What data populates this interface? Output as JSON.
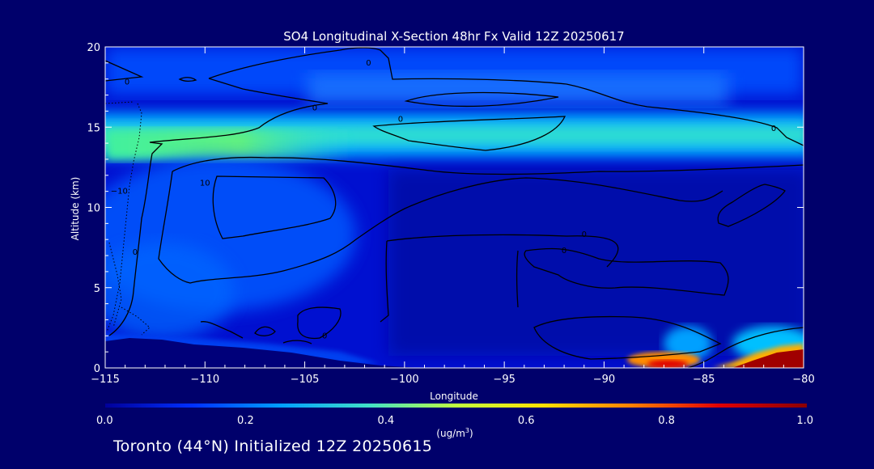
{
  "chart_data": {
    "type": "heatmap",
    "title": "SO4 Longitudinal X-Section 48hr  Fx Valid 12Z 20250617",
    "xlabel": "Longitude",
    "ylabel": "Altitude (km)",
    "xlim": [
      -115,
      -80
    ],
    "ylim": [
      0,
      20
    ],
    "x_ticks": [
      -115,
      -110,
      -105,
      -100,
      -95,
      -90,
      -85,
      -80
    ],
    "x_tick_labels": [
      "−115",
      "−110",
      "−105",
      "−100",
      "−95",
      "−90",
      "−85",
      "−80"
    ],
    "y_ticks": [
      0,
      5,
      10,
      15,
      20
    ],
    "y_tick_labels": [
      "0",
      "5",
      "10",
      "15",
      "20"
    ],
    "colorbar": {
      "min": 0.0,
      "max": 1.0,
      "ticks": [
        0.0,
        0.2,
        0.4,
        0.6,
        0.8,
        1.0
      ],
      "tick_labels": [
        "0.0",
        "0.2",
        "0.4",
        "0.6",
        "0.8",
        "1.0"
      ],
      "units_prefix": "(ug/m",
      "units_sup": "3",
      "units_suffix": ")",
      "colors": [
        "#00009a",
        "#0030ff",
        "#00a0ff",
        "#40e0c8",
        "#c0ff40",
        "#ffe000",
        "#ff8000",
        "#e00000",
        "#8a0000"
      ]
    },
    "field_features": [
      {
        "name": "upper-band",
        "lon": [
          -115,
          -80
        ],
        "alt_center": 13.7,
        "alt_halfwidth": 1.3,
        "value": 0.42
      },
      {
        "name": "upper-band-core",
        "lon": [
          -113,
          -106
        ],
        "alt_center": 13.5,
        "alt_halfwidth": 0.6,
        "value": 0.5
      },
      {
        "name": "top-layer",
        "lon": [
          -115,
          -80
        ],
        "alt_center": 17.5,
        "alt_halfwidth": 1.0,
        "value": 0.27
      },
      {
        "name": "mid-western-blob",
        "lon": [
          -113,
          -101
        ],
        "alt_center": 8,
        "alt_halfwidth": 3.5,
        "value": 0.18
      },
      {
        "name": "surface-plume-east",
        "lon": [
          -84,
          -80
        ],
        "alt_center": 0.6,
        "alt_halfwidth": 0.9,
        "value": 1.0
      },
      {
        "name": "surface-plume-mid",
        "lon": [
          -88,
          -86
        ],
        "alt_center": 0.3,
        "alt_halfwidth": 0.5,
        "value": 0.75
      }
    ],
    "contour_labels": [
      {
        "text": "0",
        "lon": -113.9,
        "alt": 17.8
      },
      {
        "text": "0",
        "lon": -104.5,
        "alt": 16.2
      },
      {
        "text": "0",
        "lon": -100.2,
        "alt": 15.5
      },
      {
        "text": "0",
        "lon": -81.5,
        "alt": 14.9
      },
      {
        "text": "0",
        "lon": -101.8,
        "alt": 19.0
      },
      {
        "text": "10",
        "lon": -110.0,
        "alt": 11.5
      },
      {
        "text": "−10",
        "lon": -114.3,
        "alt": 11.0
      },
      {
        "text": "0",
        "lon": -113.5,
        "alt": 7.2
      },
      {
        "text": "0",
        "lon": -91.0,
        "alt": 8.3
      },
      {
        "text": "0",
        "lon": -92.0,
        "alt": 7.3
      },
      {
        "text": "0",
        "lon": -104.0,
        "alt": 2.0
      }
    ]
  },
  "footer": {
    "caption": "Toronto (44°N) Initialized 12Z 20250615"
  }
}
